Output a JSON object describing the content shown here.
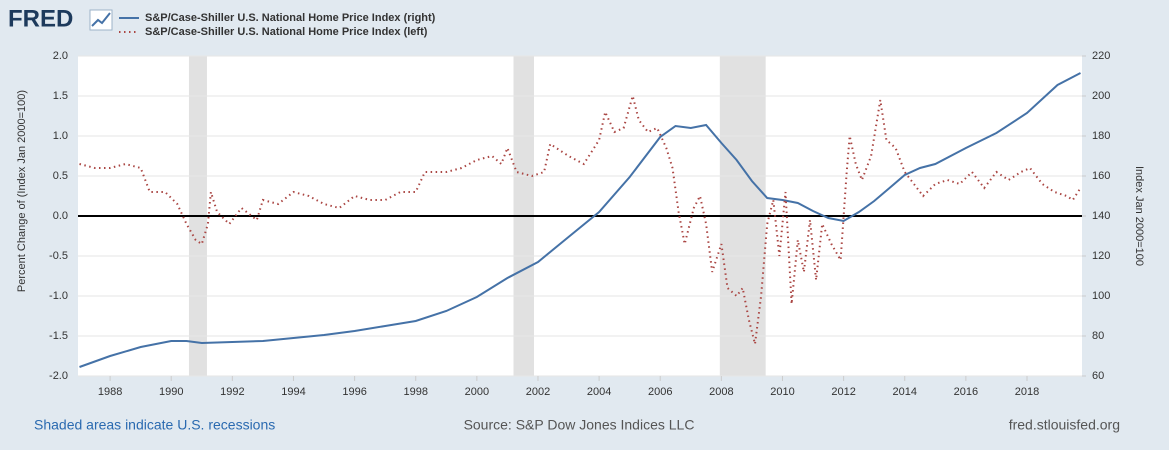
{
  "chart_data": {
    "type": "line",
    "logo": "FRED",
    "y_label": "Percent Change of (Index Jan 2000=100)",
    "y2_label": "Index Jan 2000=100",
    "note": "Shaded areas indicate U.S. recessions",
    "source": "Source: S&P Dow Jones Indices LLC",
    "site": "fred.stlouisfed.org",
    "xlim": [
      1986.95,
      2019.8
    ],
    "xticks": [
      1988,
      1990,
      1992,
      1994,
      1996,
      1998,
      2000,
      2002,
      2004,
      2006,
      2008,
      2010,
      2012,
      2014,
      2016,
      2018
    ],
    "ylim": [
      -2,
      2
    ],
    "yticks": [
      {
        "value": -2,
        "label": "-2.0"
      },
      -1.5,
      {
        "value": -1,
        "label": "-1.0"
      },
      -0.5,
      {
        "value": 0,
        "label": "0.0"
      },
      0.5,
      {
        "value": 1,
        "label": "1.0"
      },
      1.5,
      {
        "value": 2,
        "label": "2.0"
      }
    ],
    "y2lim": [
      60,
      220
    ],
    "y2ticks": [
      60,
      80,
      100,
      120,
      140,
      160,
      180,
      200,
      220
    ],
    "grid": true,
    "recessions": [
      [
        1990.58,
        1991.17
      ],
      [
        2001.2,
        2001.87
      ],
      [
        2007.95,
        2009.45
      ]
    ],
    "series": [
      {
        "name": "S&P/Case-Shiller U.S. National Home Price Index (right)",
        "color": "#4572a7",
        "axis": "y2",
        "dashed": false,
        "x": [
          1987.0,
          1988,
          1989,
          1990,
          1990.5,
          1991,
          1992,
          1993,
          1994,
          1995,
          1996,
          1997,
          1998,
          1999,
          2000,
          2001,
          2002,
          2003,
          2004,
          2005,
          2006,
          2006.5,
          2007,
          2007.5,
          2008,
          2008.5,
          2009,
          2009.5,
          2010,
          2010.5,
          2011,
          2011.5,
          2012,
          2012.5,
          2013,
          2013.5,
          2014,
          2014.5,
          2015,
          2016,
          2017,
          2018,
          2019,
          2019.75
        ],
        "values": [
          64.5,
          70,
          74.5,
          77.5,
          77.5,
          76.5,
          77,
          77.5,
          79,
          80.5,
          82.5,
          85,
          87.5,
          92.5,
          99.5,
          109,
          117,
          129.5,
          142,
          159.5,
          179.5,
          185,
          184,
          185.5,
          176.5,
          168,
          157.5,
          149,
          148,
          146.5,
          142.5,
          139,
          137.5,
          142,
          147.5,
          154,
          160.5,
          164,
          166,
          174,
          181.5,
          191.5,
          205.5,
          211.5
        ]
      },
      {
        "name": "S&P/Case-Shiller U.S. National Home Price Index (left)",
        "color": "#aa4643",
        "axis": "y",
        "dashed": true,
        "x": [
          1987.0,
          1987.5,
          1988,
          1988.5,
          1989,
          1989.3,
          1989.8,
          1990.2,
          1990.5,
          1990.8,
          1991.0,
          1991.2,
          1991.3,
          1991.5,
          1991.9,
          1992.3,
          1992.8,
          1993,
          1993.5,
          1994,
          1994.5,
          1995,
          1995.5,
          1996,
          1996.5,
          1997,
          1997.5,
          1998,
          1998.3,
          1999,
          1999.5,
          2000,
          2000.5,
          2000.8,
          2001,
          2001.3,
          2001.8,
          2002.2,
          2002.4,
          2003,
          2003.5,
          2004,
          2004.2,
          2004.5,
          2004.8,
          2005.1,
          2005.3,
          2005.6,
          2005.9,
          2006.2,
          2006.4,
          2006.6,
          2006.8,
          2007.1,
          2007.3,
          2007.5,
          2007.7,
          2008,
          2008.2,
          2008.5,
          2008.7,
          2008.9,
          2009.1,
          2009.3,
          2009.5,
          2009.7,
          2009.9,
          2010.1,
          2010.3,
          2010.5,
          2010.7,
          2010.9,
          2011.1,
          2011.3,
          2011.6,
          2011.9,
          2012.1,
          2012.2,
          2012.4,
          2012.6,
          2012.9,
          2013.2,
          2013.4,
          2013.7,
          2014,
          2014.3,
          2014.6,
          2015,
          2015.4,
          2015.8,
          2016.2,
          2016.6,
          2017,
          2017.4,
          2017.8,
          2018.1,
          2018.5,
          2018.9,
          2019.3,
          2019.5,
          2019.75
        ],
        "values": [
          0.65,
          0.6,
          0.6,
          0.65,
          0.6,
          0.3,
          0.3,
          0.15,
          -0.1,
          -0.3,
          -0.35,
          -0.1,
          0.3,
          0.05,
          -0.1,
          0.1,
          -0.05,
          0.2,
          0.15,
          0.3,
          0.25,
          0.15,
          0.1,
          0.25,
          0.2,
          0.2,
          0.3,
          0.3,
          0.55,
          0.55,
          0.6,
          0.7,
          0.75,
          0.65,
          0.85,
          0.55,
          0.5,
          0.55,
          0.9,
          0.75,
          0.65,
          0.95,
          1.3,
          1.05,
          1.1,
          1.5,
          1.2,
          1.05,
          1.1,
          0.85,
          0.6,
          0.05,
          -0.35,
          0.1,
          0.25,
          -0.1,
          -0.7,
          -0.35,
          -0.9,
          -1.0,
          -0.9,
          -1.3,
          -1.6,
          -1.0,
          -0.1,
          0.2,
          -0.5,
          0.3,
          -1.1,
          -0.3,
          -0.7,
          -0.05,
          -0.8,
          -0.1,
          -0.35,
          -0.55,
          0.55,
          1.0,
          0.65,
          0.45,
          0.75,
          1.45,
          0.95,
          0.85,
          0.55,
          0.4,
          0.25,
          0.4,
          0.45,
          0.4,
          0.55,
          0.35,
          0.55,
          0.45,
          0.55,
          0.6,
          0.4,
          0.3,
          0.25,
          0.2,
          0.35
        ]
      }
    ]
  }
}
